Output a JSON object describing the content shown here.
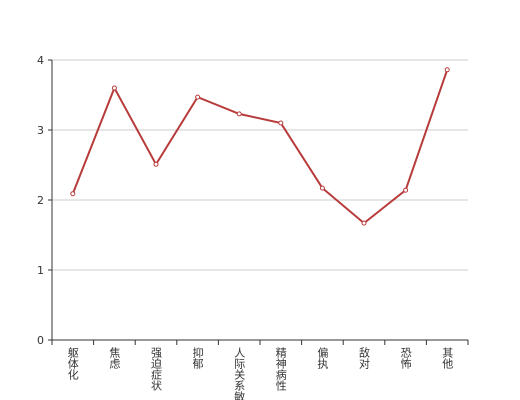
{
  "chart_data": {
    "type": "line",
    "categories": [
      "躯体化",
      "焦虑",
      "强迫症状",
      "抑郁",
      "人际关系敏感",
      "精神病性",
      "偏执",
      "敌对",
      "恐怖",
      "其他"
    ],
    "values": [
      2.09,
      3.6,
      2.51,
      3.47,
      3.23,
      3.1,
      2.17,
      1.67,
      2.14,
      3.86
    ],
    "color": "#b83b3b",
    "ylim": [
      0,
      4
    ],
    "yticks": [
      0,
      1,
      2,
      3,
      4
    ],
    "grid": true
  }
}
